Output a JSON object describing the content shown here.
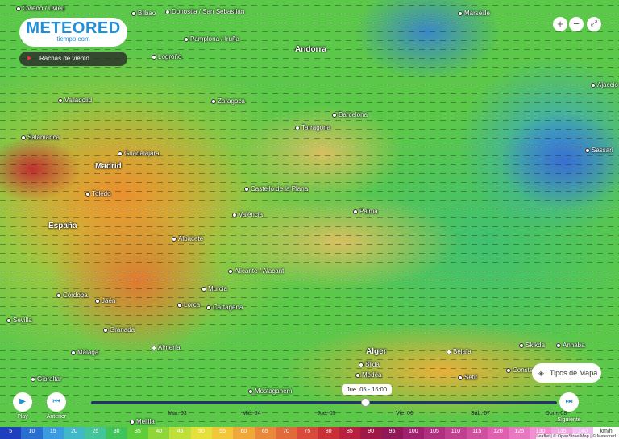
{
  "header": {
    "logo": "METEORED",
    "logo_sub": "tiempo.com",
    "layer": "Rachas de viento"
  },
  "map": {
    "places": [
      "Oviedo / Uviéu",
      "Bilbao",
      "Donostia / San Sebastián",
      "Pamplona / Iruña",
      "Logroño",
      "Andorra",
      "Valladolid",
      "Zaragoza",
      "Barcelona",
      "Tarragona",
      "Salamanca",
      "Guadalajara",
      "Madrid",
      "Toledo",
      "Castelló de la Plana",
      "València",
      "Palma",
      "España",
      "Albacete",
      "Alicante / Alacant",
      "Murcia",
      "Lorca",
      "Cartagena",
      "Córdoba",
      "Jaén",
      "Sevilla",
      "Granada",
      "Málaga",
      "Almería",
      "Gibraltar",
      "Melilla",
      "Mostaganem",
      "Alger",
      "Blida",
      "Médéa",
      "Béjaïa",
      "Sétif",
      "Skikda",
      "Annaba",
      "Constantine",
      "Marseille",
      "Ajaccio",
      "Sassari"
    ]
  },
  "controls": {
    "zoom_in": "+",
    "zoom_out": "−",
    "map_types": "Tipos de Mapa"
  },
  "timeline": {
    "days": [
      "Mar. 03",
      "Mié. 04",
      "Jue. 05",
      "Vie. 06",
      "Sáb. 07",
      "Dom. 08"
    ],
    "current": "Jue. 05 - 16:00",
    "play": "Play",
    "previous": "Anterior",
    "next": "Siguiente"
  },
  "legend": {
    "values": [
      5,
      10,
      15,
      20,
      25,
      30,
      35,
      40,
      45,
      50,
      55,
      60,
      65,
      70,
      75,
      80,
      85,
      90,
      95,
      100,
      105,
      110,
      115,
      120,
      125,
      130,
      135,
      140
    ],
    "unit": "km/h",
    "colors": [
      "#1f3fbf",
      "#2a6fd0",
      "#3b9be0",
      "#40b8c8",
      "#44c49a",
      "#3fc35a",
      "#5fcc3a",
      "#8fd63a",
      "#bfe03a",
      "#e6e03a",
      "#f0c83a",
      "#f0a83a",
      "#e8883a",
      "#e06a3a",
      "#d84a3a",
      "#c83038",
      "#b82040",
      "#a01848",
      "#901858",
      "#a02070",
      "#b03080",
      "#c04090",
      "#d050a0",
      "#e060b0",
      "#e878c0",
      "#f090d0",
      "#f0a8e0",
      "#f0c0f0"
    ]
  },
  "attribution": "Leaflet | © OpenStreetMap | © Meteored"
}
